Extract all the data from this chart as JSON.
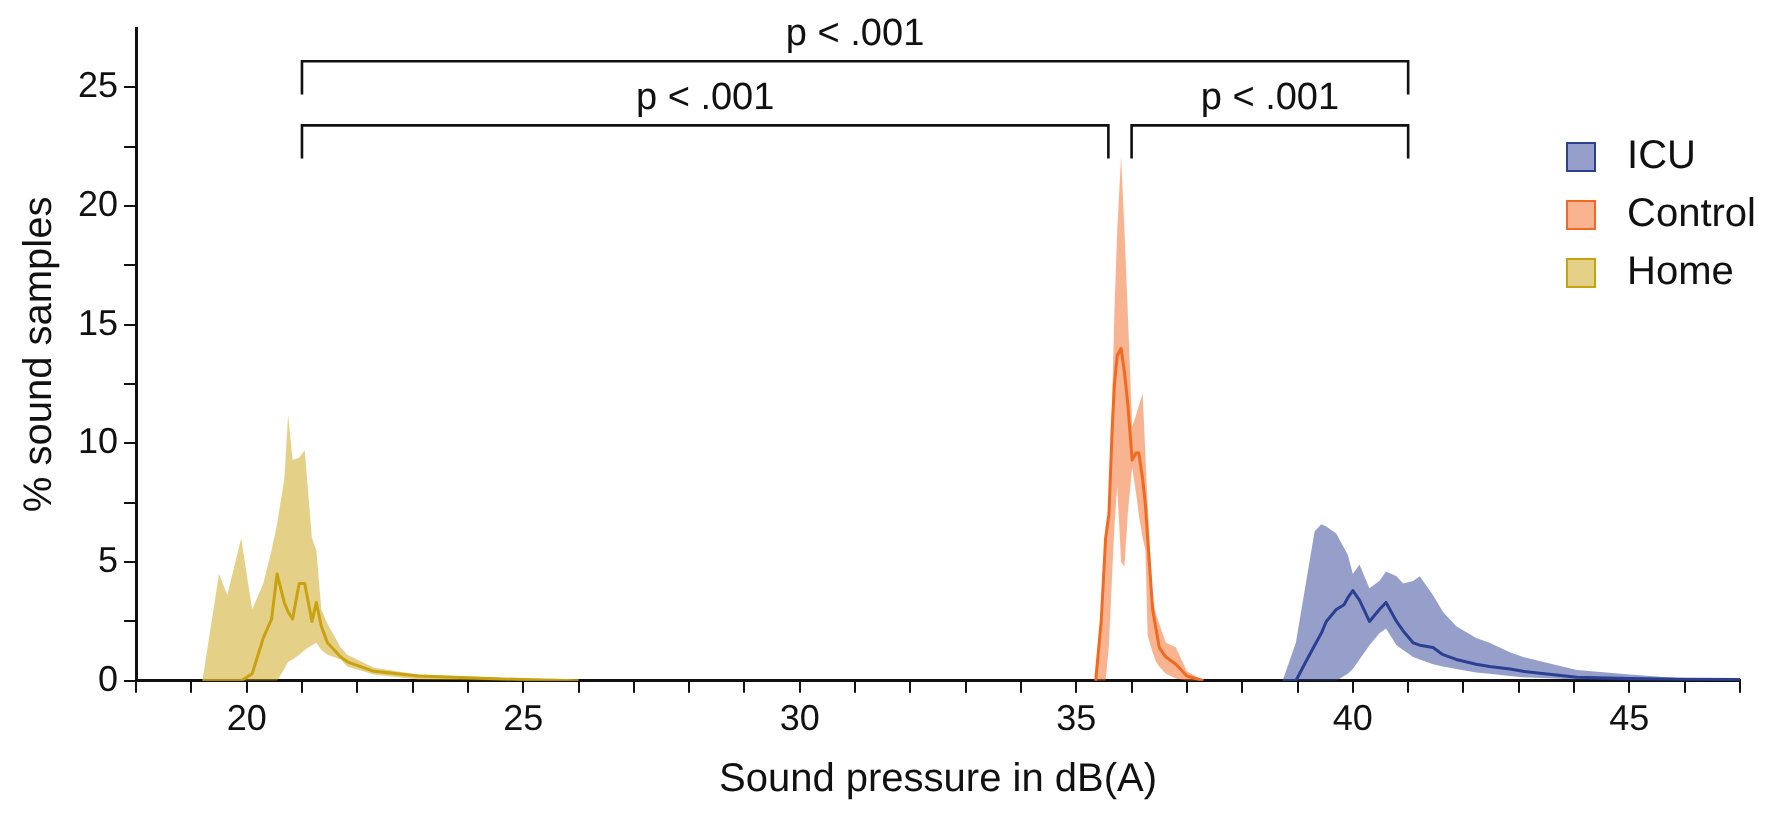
{
  "chart_data": {
    "type": "line",
    "xlabel": "Sound pressure in dB(A)",
    "ylabel": "% sound samples",
    "xlim": [
      18,
      47
    ],
    "xticks": [
      {
        "value": 18,
        "label": null
      },
      {
        "value": 19,
        "label": null
      },
      20,
      {
        "value": 21,
        "label": null
      },
      {
        "value": 22,
        "label": null
      },
      {
        "value": 23,
        "label": null
      },
      {
        "value": 24,
        "label": null
      },
      25,
      {
        "value": 26,
        "label": null
      },
      {
        "value": 27,
        "label": null
      },
      {
        "value": 28,
        "label": null
      },
      {
        "value": 29,
        "label": null
      },
      30,
      {
        "value": 31,
        "label": null
      },
      {
        "value": 32,
        "label": null
      },
      {
        "value": 33,
        "label": null
      },
      {
        "value": 34,
        "label": null
      },
      35,
      {
        "value": 36,
        "label": null
      },
      {
        "value": 37,
        "label": null
      },
      {
        "value": 38,
        "label": null
      },
      {
        "value": 39,
        "label": null
      },
      40,
      {
        "value": 41,
        "label": null
      },
      {
        "value": 42,
        "label": null
      },
      {
        "value": 43,
        "label": null
      },
      {
        "value": 44,
        "label": null
      },
      45,
      {
        "value": 46,
        "label": null
      },
      {
        "value": 47,
        "label": null
      }
    ],
    "ylim": [
      0,
      27.5
    ],
    "yticks": [
      0,
      {
        "value": 2.5,
        "label": null
      },
      5,
      {
        "value": 7.5,
        "label": null
      },
      10,
      {
        "value": 12.5,
        "label": null
      },
      15,
      {
        "value": 17.5,
        "label": null
      },
      20,
      {
        "value": 22.5,
        "label": null
      },
      25
    ],
    "grid": false,
    "legend": "top right",
    "marker": "none",
    "line_style": "solid",
    "annotations": [
      "p < .001",
      "p < .001",
      "p < .001"
    ],
    "series": [
      {
        "name": "ICU",
        "color": "#2b3f93",
        "x": [
          38.73,
          38.97,
          39.15,
          39.31,
          39.43,
          39.52,
          39.7,
          39.84,
          39.91,
          40.0,
          40.12,
          40.3,
          40.48,
          40.6,
          40.79,
          40.91,
          41.09,
          41.21,
          41.45,
          41.63,
          41.87,
          42.23,
          42.47,
          42.84,
          43.08,
          44.05,
          45.01,
          45.98,
          47.0
        ],
        "values": [
          0,
          0,
          0.8,
          1.5,
          2.0,
          2.5,
          3.0,
          3.2,
          3.5,
          3.8,
          3.4,
          2.5,
          3.0,
          3.3,
          2.5,
          2.1,
          1.6,
          1.5,
          1.4,
          1.1,
          0.9,
          0.7,
          0.6,
          0.5,
          0.4,
          0.15,
          0.1,
          0.07,
          0.05
        ],
        "lower": [
          0,
          0,
          0,
          0,
          0,
          0,
          0,
          0.2,
          0.3,
          0.5,
          0.9,
          1.5,
          2.0,
          2.2,
          1.5,
          1.3,
          1.0,
          0.9,
          0.7,
          0.6,
          0.5,
          0.35,
          0.3,
          0.2,
          0.15,
          0.05,
          0,
          0,
          0
        ],
        "upper": [
          0,
          1.6,
          4.1,
          6.3,
          6.6,
          6.5,
          6.2,
          5.6,
          5.3,
          4.5,
          4.9,
          3.9,
          4.2,
          4.6,
          4.4,
          4.1,
          4.2,
          4.4,
          3.6,
          2.9,
          2.3,
          1.8,
          1.6,
          1.2,
          1.0,
          0.45,
          0.27,
          0.1,
          0.05
        ]
      },
      {
        "name": "Control",
        "color": "#f26a21",
        "x": [
          35.35,
          35.45,
          35.53,
          35.59,
          35.65,
          35.69,
          35.74,
          35.81,
          35.87,
          35.93,
          36.01,
          36.08,
          36.13,
          36.2,
          36.25,
          36.29,
          36.38,
          36.44,
          36.5,
          36.62,
          36.8,
          37.0,
          37.3
        ],
        "values": [
          0,
          2.5,
          6.0,
          7.0,
          10.7,
          12.5,
          13.7,
          14.0,
          13.0,
          11.7,
          9.3,
          9.6,
          9.6,
          8.5,
          7.4,
          6.0,
          3.0,
          2.2,
          1.4,
          1.0,
          0.7,
          0.2,
          0
        ],
        "lower": [
          0,
          0,
          0,
          1.5,
          4.6,
          6.5,
          8.2,
          5.0,
          4.8,
          7.0,
          9.0,
          7.9,
          7.0,
          6.0,
          5.5,
          1.9,
          1.2,
          0.8,
          0.6,
          0.3,
          0.1,
          0,
          0
        ],
        "upper": [
          0,
          3,
          6.5,
          7.4,
          12,
          15.6,
          19,
          22.1,
          19,
          15.6,
          10.7,
          11.2,
          11.6,
          12.1,
          9.5,
          7.4,
          3.5,
          2.8,
          2.4,
          1.6,
          1.4,
          0.4,
          0
        ]
      },
      {
        "name": "Home",
        "color": "#c9a20f",
        "x": [
          19.2,
          19.5,
          19.65,
          19.9,
          20.1,
          20.3,
          20.45,
          20.55,
          20.68,
          20.75,
          20.83,
          20.95,
          21.05,
          21.18,
          21.26,
          21.35,
          21.46,
          21.7,
          21.82,
          22.3,
          23.1,
          25,
          26
        ],
        "values": [
          0,
          0,
          0,
          0,
          0.3,
          1.8,
          2.6,
          4.5,
          3.3,
          2.9,
          2.6,
          4.1,
          4.1,
          2.5,
          3.3,
          2.3,
          1.6,
          1.0,
          0.8,
          0.4,
          0.2,
          0.05,
          0
        ],
        "lower": [
          0,
          0,
          0,
          0,
          0,
          0,
          0,
          0,
          0.5,
          0.8,
          0.9,
          1.1,
          1.3,
          1.5,
          1.6,
          1.3,
          1.1,
          0.9,
          0.6,
          0.27,
          0.05,
          0,
          0
        ],
        "upper": [
          0,
          4.5,
          3.6,
          6.0,
          3.0,
          4.1,
          5.5,
          6.6,
          8.5,
          11.2,
          9.3,
          9.4,
          9.7,
          6.0,
          5.5,
          3.0,
          2.4,
          1.4,
          1.1,
          0.55,
          0.27,
          0.08,
          0.02
        ]
      }
    ]
  }
}
